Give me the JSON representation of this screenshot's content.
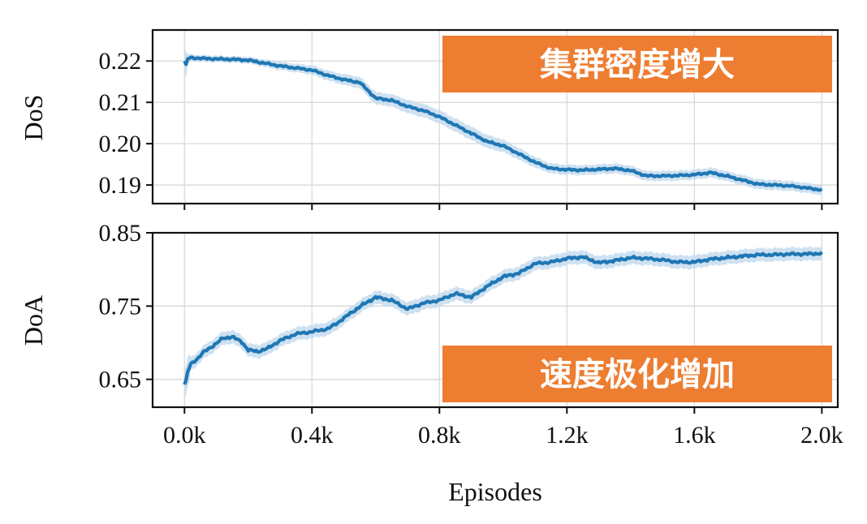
{
  "chart_data": [
    {
      "id": "dos",
      "type": "line",
      "ylabel": "DoS",
      "ylim": [
        0.1855,
        0.2275
      ],
      "yticks": [
        0.19,
        0.2,
        0.21,
        0.22
      ],
      "ytick_labels": [
        "0.19",
        "0.20",
        "0.21",
        "0.22"
      ],
      "xlim": [
        -100,
        2050
      ],
      "grid": true,
      "line_color": "#1f77b4",
      "band_color": "#c6dcef",
      "annotation": {
        "text": "集群密度增大",
        "color": "#ed7d31",
        "placement": "top-right"
      },
      "series": [
        {
          "x": [
            0,
            5,
            10,
            20,
            40,
            60,
            100,
            150,
            200,
            250,
            300,
            350,
            400,
            450,
            500,
            550,
            600,
            650,
            700,
            750,
            800,
            850,
            900,
            950,
            1000,
            1050,
            1100,
            1150,
            1200,
            1250,
            1300,
            1350,
            1400,
            1450,
            1500,
            1550,
            1600,
            1650,
            1700,
            1750,
            1800,
            1850,
            1900,
            1950,
            2000
          ],
          "y": [
            0.22,
            0.219,
            0.2205,
            0.2208,
            0.2207,
            0.2206,
            0.2205,
            0.2204,
            0.2202,
            0.2195,
            0.2188,
            0.2183,
            0.2178,
            0.2165,
            0.2155,
            0.2148,
            0.211,
            0.2105,
            0.209,
            0.208,
            0.2065,
            0.2045,
            0.2025,
            0.2005,
            0.1995,
            0.1975,
            0.1955,
            0.194,
            0.1937,
            0.1936,
            0.1938,
            0.194,
            0.1935,
            0.1922,
            0.1922,
            0.1923,
            0.1925,
            0.193,
            0.1922,
            0.1912,
            0.1902,
            0.19,
            0.1898,
            0.1893,
            0.1888
          ],
          "band": [
            0.0035,
            0.003,
            0.0012,
            0.0008,
            0.0008,
            0.0008,
            0.0008,
            0.0008,
            0.0008,
            0.0009,
            0.001,
            0.001,
            0.0011,
            0.0012,
            0.0013,
            0.0014,
            0.0015,
            0.0015,
            0.0016,
            0.0016,
            0.0016,
            0.0016,
            0.0016,
            0.0016,
            0.0015,
            0.0014,
            0.0013,
            0.0012,
            0.0012,
            0.0012,
            0.0012,
            0.0012,
            0.0012,
            0.0012,
            0.0012,
            0.0012,
            0.0012,
            0.0012,
            0.0012,
            0.0012,
            0.0012,
            0.0012,
            0.0012,
            0.0012,
            0.0012
          ]
        }
      ]
    },
    {
      "id": "doa",
      "type": "line",
      "ylabel": "DoA",
      "xlabel": "Episodes",
      "ylim": [
        0.612,
        0.85
      ],
      "yticks": [
        0.65,
        0.75,
        0.85
      ],
      "ytick_labels": [
        "0.65",
        "0.75",
        "0.85"
      ],
      "xlim": [
        -100,
        2050
      ],
      "xticks": [
        0,
        400,
        800,
        1200,
        1600,
        2000
      ],
      "xtick_labels": [
        "0.0k",
        "0.4k",
        "0.8k",
        "1.2k",
        "1.6k",
        "2.0k"
      ],
      "grid": true,
      "line_color": "#1f77b4",
      "band_color": "#c6dcef",
      "annotation": {
        "text": "速度极化增加",
        "color": "#ed7d31",
        "placement": "bottom-right"
      },
      "series": [
        {
          "x": [
            0,
            5,
            10,
            20,
            40,
            60,
            100,
            120,
            150,
            180,
            200,
            230,
            260,
            300,
            350,
            400,
            450,
            480,
            520,
            560,
            600,
            650,
            700,
            750,
            800,
            850,
            900,
            950,
            1000,
            1050,
            1100,
            1150,
            1200,
            1250,
            1300,
            1350,
            1400,
            1450,
            1500,
            1550,
            1600,
            1650,
            1700,
            1750,
            1800,
            1850,
            1900,
            1950,
            2000
          ],
          "y": [
            0.643,
            0.648,
            0.66,
            0.671,
            0.678,
            0.687,
            0.699,
            0.706,
            0.708,
            0.701,
            0.69,
            0.688,
            0.692,
            0.703,
            0.712,
            0.715,
            0.719,
            0.727,
            0.74,
            0.752,
            0.762,
            0.758,
            0.746,
            0.754,
            0.758,
            0.767,
            0.762,
            0.777,
            0.79,
            0.795,
            0.808,
            0.81,
            0.815,
            0.817,
            0.809,
            0.812,
            0.816,
            0.815,
            0.813,
            0.81,
            0.81,
            0.814,
            0.816,
            0.818,
            0.82,
            0.82,
            0.821,
            0.821,
            0.822
          ]
        }
      ]
    }
  ]
}
